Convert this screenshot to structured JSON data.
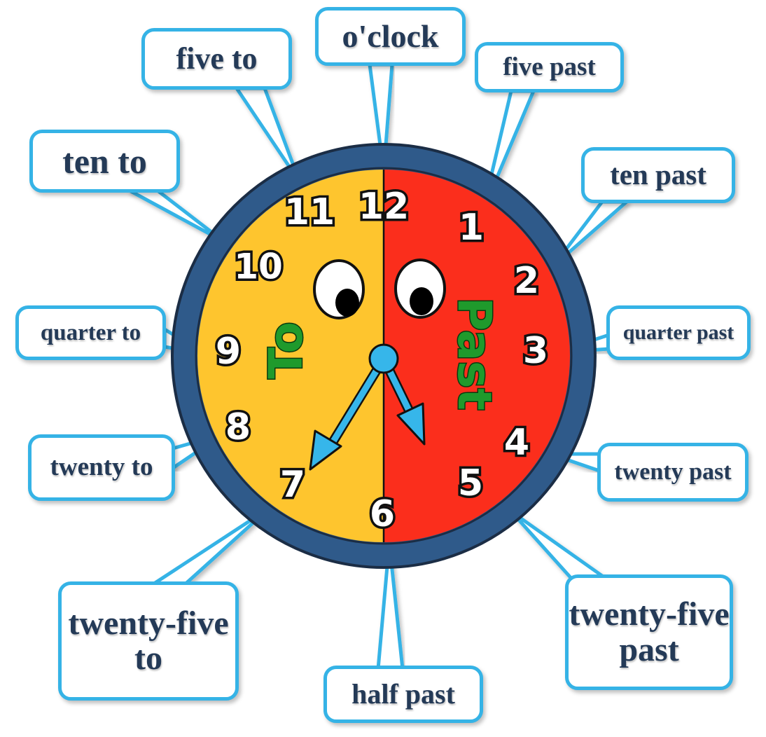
{
  "clock": {
    "colors": {
      "rim": "#2f5a8a",
      "to_half": "#fec52e",
      "past_half": "#fb2e1c",
      "numeral_fill": "#ffffff",
      "numeral_outline": "#111111",
      "word_fill": "#1f9a2c",
      "word_outline": "#0a3a0e",
      "hands": "#36b6ea",
      "callout": "#35b3e6",
      "label_text": "#243a57"
    },
    "numerals": [
      "12",
      "1",
      "2",
      "3",
      "4",
      "5",
      "6",
      "7",
      "8",
      "9",
      "10",
      "11"
    ],
    "to_word": "To",
    "past_word": "Past",
    "hands": {
      "hour_points_to": "7",
      "minute_points_to": "5"
    }
  },
  "labels": {
    "oclock": "o'clock",
    "five_past": "five past",
    "ten_past": "ten past",
    "quarter_past": "quarter past",
    "twenty_past": "twenty past",
    "twenty_five_past_line1": "twenty-five",
    "twenty_five_past_line2": "past",
    "half_past": "half past",
    "twenty_five_to_line1": "twenty-five",
    "twenty_five_to_line2": "to",
    "twenty_to": "twenty to",
    "quarter_to": "quarter to",
    "ten_to": "ten to",
    "five_to": "five to"
  }
}
